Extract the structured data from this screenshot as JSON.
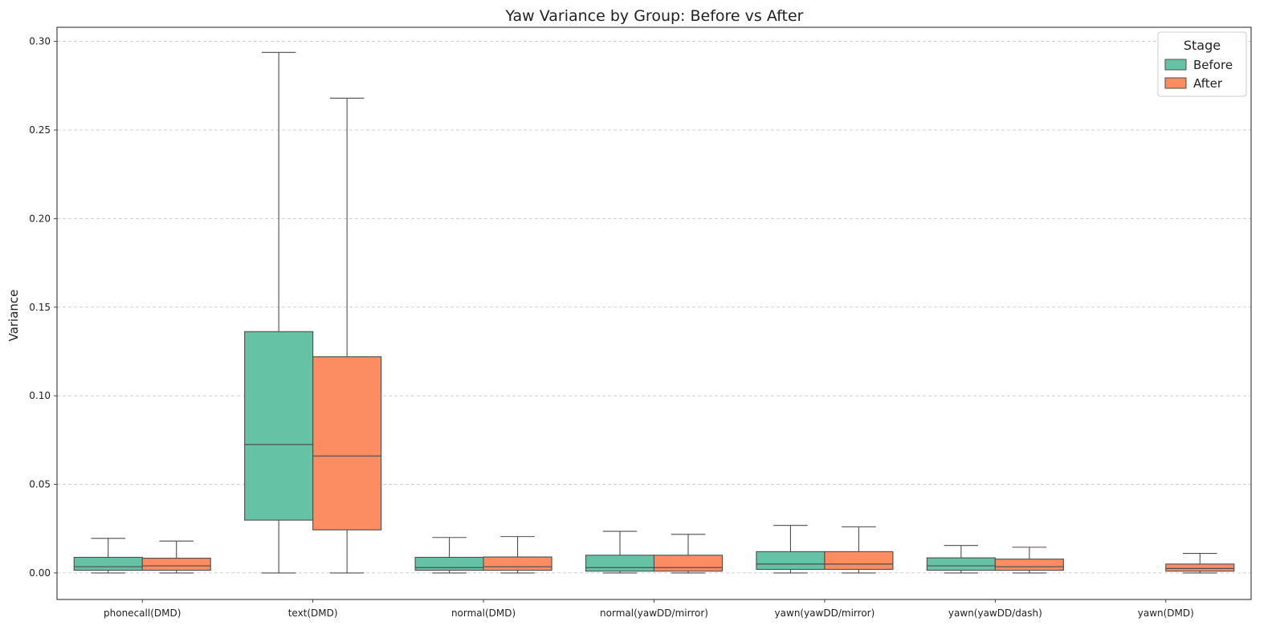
{
  "chart_data": {
    "type": "box",
    "title": "Yaw Variance by Group: Before vs After",
    "xlabel": "",
    "ylabel": "Variance",
    "ylim": [
      -0.015,
      0.308
    ],
    "yticks": [
      "0.00",
      "0.05",
      "0.10",
      "0.15",
      "0.20",
      "0.25",
      "0.30"
    ],
    "grid": "y-dashed",
    "legend": {
      "title": "Stage",
      "position": "top-right"
    },
    "categories": [
      "phonecall(DMD)",
      "text(DMD)",
      "normal(DMD)",
      "normal(yawDD/mirror)",
      "yawn(yawDD/mirror)",
      "yawn(yawDD/dash)",
      "yawn(DMD)"
    ],
    "series": [
      {
        "name": "Before",
        "color": "#66c2a5",
        "boxes": [
          {
            "min": 0.0,
            "q1": 0.0015,
            "median": 0.0035,
            "q3": 0.0088,
            "max": 0.0195
          },
          {
            "min": 0.0,
            "q1": 0.0298,
            "median": 0.0725,
            "q3": 0.1362,
            "max": 0.2938
          },
          {
            "min": 0.0,
            "q1": 0.0015,
            "median": 0.003,
            "q3": 0.0088,
            "max": 0.02
          },
          {
            "min": 0.0,
            "q1": 0.001,
            "median": 0.003,
            "q3": 0.01,
            "max": 0.0235
          },
          {
            "min": 0.0,
            "q1": 0.002,
            "median": 0.005,
            "q3": 0.012,
            "max": 0.0268
          },
          {
            "min": 0.0,
            "q1": 0.0015,
            "median": 0.004,
            "q3": 0.0085,
            "max": 0.0155
          },
          null
        ]
      },
      {
        "name": "After",
        "color": "#fc8d62",
        "boxes": [
          {
            "min": 0.0,
            "q1": 0.0015,
            "median": 0.004,
            "q3": 0.0083,
            "max": 0.018
          },
          {
            "min": 0.0,
            "q1": 0.0243,
            "median": 0.066,
            "q3": 0.122,
            "max": 0.268
          },
          {
            "min": 0.0,
            "q1": 0.0015,
            "median": 0.0035,
            "q3": 0.009,
            "max": 0.0205
          },
          {
            "min": 0.0,
            "q1": 0.001,
            "median": 0.003,
            "q3": 0.01,
            "max": 0.0218
          },
          {
            "min": 0.0,
            "q1": 0.002,
            "median": 0.005,
            "q3": 0.012,
            "max": 0.026
          },
          {
            "min": 0.0,
            "q1": 0.0015,
            "median": 0.0035,
            "q3": 0.0078,
            "max": 0.0145
          },
          {
            "min": 0.0,
            "q1": 0.001,
            "median": 0.0025,
            "q3": 0.005,
            "max": 0.011
          }
        ]
      }
    ],
    "colors": {
      "box_edge": "#4d4d4d",
      "grid": "#bfbfbf"
    }
  }
}
